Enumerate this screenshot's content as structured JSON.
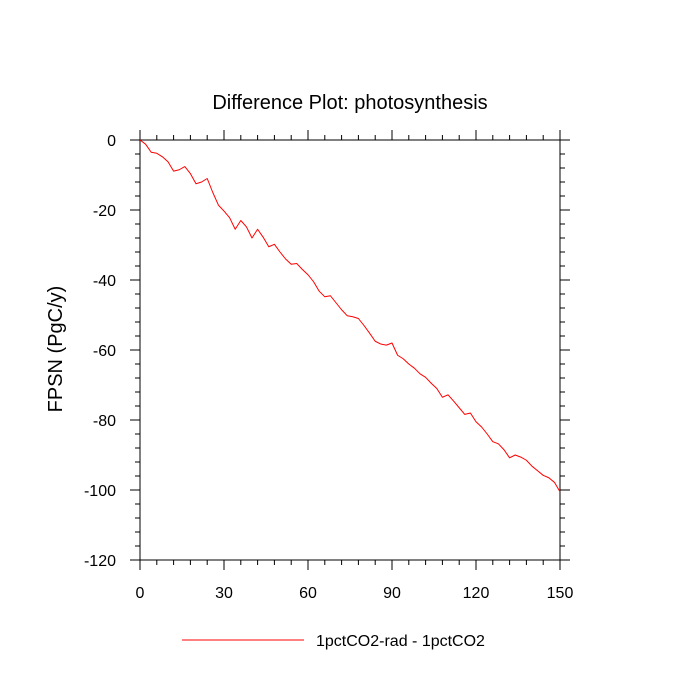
{
  "chart_data": {
    "type": "line",
    "title": "Difference Plot: photosynthesis",
    "xlabel": "",
    "ylabel": "FPSN  (PgC/y)",
    "xlim": [
      0,
      150
    ],
    "ylim": [
      -120,
      0
    ],
    "xticks": [
      0,
      30,
      60,
      90,
      120,
      150
    ],
    "yticks": [
      0,
      -20,
      -40,
      -60,
      -80,
      -100,
      -120
    ],
    "legend_position": "bottom-center",
    "grid": false,
    "series": [
      {
        "name": "1pctCO2-rad - 1pctCO2",
        "color": "#ff0000",
        "x": [
          0,
          2,
          4,
          6,
          8,
          10,
          12,
          14,
          16,
          18,
          20,
          22,
          24,
          26,
          28,
          30,
          32,
          34,
          36,
          38,
          40,
          42,
          44,
          46,
          48,
          50,
          52,
          54,
          56,
          58,
          60,
          62,
          64,
          66,
          68,
          70,
          72,
          74,
          76,
          78,
          80,
          82,
          84,
          86,
          88,
          90,
          92,
          94,
          96,
          98,
          100,
          102,
          104,
          106,
          108,
          110,
          112,
          114,
          116,
          118,
          120,
          122,
          124,
          126,
          128,
          130,
          132,
          134,
          136,
          138,
          140,
          142,
          144,
          146,
          148,
          150
        ],
        "y": [
          0,
          -1.2,
          -3.5,
          -3.8,
          -4.8,
          -6.2,
          -8.9,
          -8.5,
          -7.6,
          -9.6,
          -12.5,
          -12,
          -11,
          -15,
          -18.6,
          -20.3,
          -22.2,
          -25.5,
          -23,
          -24.8,
          -28,
          -25.5,
          -27.8,
          -30.5,
          -29.8,
          -32,
          -34,
          -35.5,
          -35.3,
          -37,
          -38.5,
          -40.5,
          -43.2,
          -44.8,
          -44.5,
          -46.5,
          -48.5,
          -50.2,
          -50.5,
          -51,
          -53,
          -55.2,
          -57.5,
          -58.3,
          -58.6,
          -58,
          -61.5,
          -62.5,
          -64,
          -65.2,
          -66.8,
          -67.8,
          -69.5,
          -71,
          -73.5,
          -72.8,
          -74.6,
          -76.5,
          -78.4,
          -78,
          -80.5,
          -82,
          -84,
          -86.2,
          -86.8,
          -88.5,
          -90.8,
          -90,
          -90.6,
          -91.5,
          -93.2,
          -94.5,
          -95.8,
          -96.5,
          -97.8,
          -100.5
        ]
      }
    ]
  }
}
